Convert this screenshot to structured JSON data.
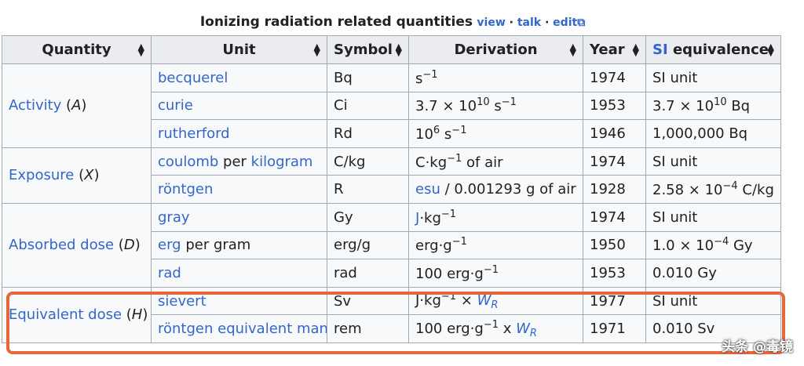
{
  "caption": {
    "title": "Ionizing radiation related quantities",
    "view": "view",
    "talk": "talk",
    "edit": "edit",
    "sep": "·"
  },
  "headers": [
    "Quantity",
    "Unit",
    "Symbol",
    "Derivation",
    "Year",
    "SI equivalence"
  ],
  "header_si_link": "SI",
  "header_si_rest": " equivalence",
  "rows": {
    "activity": {
      "q": "Activity",
      "sym": "A"
    },
    "exposure": {
      "q": "Exposure",
      "sym": "X"
    },
    "absorbed": {
      "q": "Absorbed dose",
      "sym": "D"
    },
    "equivalent": {
      "q": "Equivalent dose",
      "sym": "H"
    }
  },
  "cells": {
    "becquerel": {
      "unit": "becquerel",
      "symbol": "Bq",
      "deriv_base": "s",
      "deriv_exp": "−1",
      "year": "1974",
      "si": "SI unit"
    },
    "curie": {
      "unit": "curie",
      "symbol": "Ci",
      "deriv_a": "3.7 × 10",
      "deriv_exp1": "10",
      "deriv_b": " s",
      "deriv_exp2": "−1",
      "year": "1953",
      "si_a": "3.7 × 10",
      "si_exp": "10",
      "si_b": " Bq"
    },
    "rutherford": {
      "unit": "rutherford",
      "symbol": "Rd",
      "deriv_a": "10",
      "deriv_exp1": "6",
      "deriv_b": " s",
      "deriv_exp2": "−1",
      "year": "1946",
      "si": "1,000,000 Bq"
    },
    "coulomb": {
      "unit_a": "coulomb",
      "unit_mid": " per ",
      "unit_b": "kilogram",
      "symbol": "C/kg",
      "deriv_a": "C·kg",
      "deriv_exp": "−1",
      "deriv_b": " of air",
      "year": "1974",
      "si": "SI unit"
    },
    "rontgen": {
      "unit": "röntgen",
      "symbol": "R",
      "deriv_link": "esu",
      "deriv_b": " / 0.001293 g of air",
      "year": "1928",
      "si_a": "2.58 × 10",
      "si_exp": "−4",
      "si_b": " C/kg"
    },
    "gray": {
      "unit": "gray",
      "symbol": "Gy",
      "deriv_link": "J",
      "deriv_a": "·kg",
      "deriv_exp": "−1",
      "year": "1974",
      "si": "SI unit"
    },
    "erg": {
      "unit_link": "erg",
      "unit_rest": " per gram",
      "symbol": "erg/g",
      "deriv_a": "erg·g",
      "deriv_exp": "−1",
      "year": "1950",
      "si_a": "1.0 × 10",
      "si_exp": "−4",
      "si_b": " Gy"
    },
    "rad": {
      "unit": "rad",
      "symbol": "rad",
      "deriv_a": "100 erg·g",
      "deriv_exp": "−1",
      "year": "1953",
      "si": "0.010 Gy"
    },
    "sievert": {
      "unit": "sievert",
      "symbol": "Sv",
      "deriv_a": "J·kg",
      "deriv_exp": "−1",
      "deriv_b": " × ",
      "wr": "W",
      "wr_sub": "R",
      "year": "1977",
      "si": "SI unit"
    },
    "rem": {
      "unit": "röntgen equivalent man",
      "symbol": "rem",
      "deriv_a": "100 erg·g",
      "deriv_exp": "−1",
      "deriv_b": " x ",
      "wr": "W",
      "wr_sub": "R",
      "year": "1971",
      "si": "0.010 Sv"
    }
  },
  "watermark": "头条 @毒镜",
  "colors": {
    "link": "#3366cc",
    "header_bg": "#eaecf0",
    "cell_bg": "#f8f9fa",
    "border": "#a2a9b1",
    "highlight": "#e8673a"
  }
}
